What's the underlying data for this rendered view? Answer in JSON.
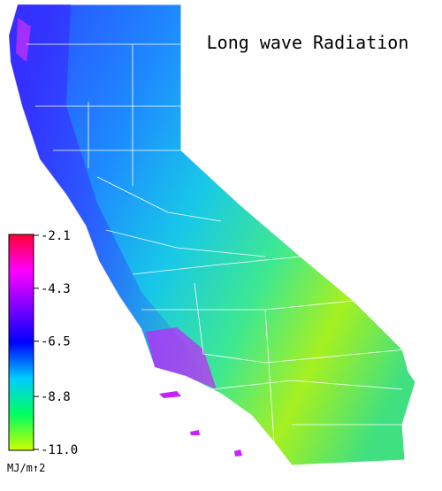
{
  "title": "Long wave Radiation",
  "colorbar": {
    "lim": [
      -2.1,
      -11
    ],
    "ticks": [
      -2.1,
      -4.3,
      -6.5,
      -8.8,
      {
        "value": -11,
        "label": "-11.0"
      }
    ],
    "colors": [
      "#ff0033",
      "#ff00ff",
      "#8000ff",
      "#0000ff",
      "#00ccff",
      "#00ff60",
      "#ccff00"
    ],
    "unit": "MJ/m↑2"
  }
}
